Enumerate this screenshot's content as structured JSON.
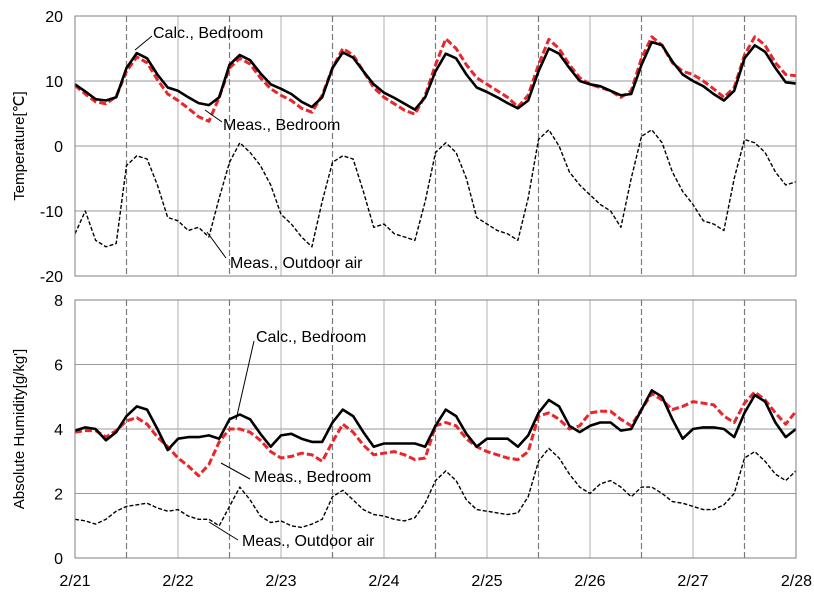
{
  "chart_data": [
    {
      "type": "line",
      "ylabel": "Temperature[℃]",
      "ylim": [
        -20,
        20
      ],
      "yticks": [
        "20",
        "10",
        "0",
        "-10",
        "-20"
      ],
      "xlim": [
        0,
        7
      ],
      "grid": true,
      "x": [
        0,
        0.1,
        0.2,
        0.3,
        0.4,
        0.5,
        0.6,
        0.7,
        0.8,
        0.9,
        1.0,
        1.1,
        1.2,
        1.3,
        1.4,
        1.5,
        1.6,
        1.7,
        1.8,
        1.9,
        2.0,
        2.1,
        2.2,
        2.3,
        2.4,
        2.5,
        2.6,
        2.7,
        2.8,
        2.9,
        3.0,
        3.1,
        3.2,
        3.3,
        3.4,
        3.5,
        3.6,
        3.7,
        3.8,
        3.9,
        4.0,
        4.1,
        4.2,
        4.3,
        4.4,
        4.5,
        4.6,
        4.7,
        4.8,
        4.9,
        5.0,
        5.1,
        5.2,
        5.3,
        5.4,
        5.5,
        5.6,
        5.7,
        5.8,
        5.9,
        6.0,
        6.1,
        6.2,
        6.3,
        6.4,
        6.5,
        6.6,
        6.7,
        6.8,
        6.9,
        7.0
      ],
      "series": [
        {
          "id": "calc-bedroom",
          "color": "#000000",
          "dash": "solid",
          "values": [
            9.5,
            8.4,
            7.2,
            7.0,
            7.5,
            12.0,
            14.3,
            13.5,
            11.0,
            9.0,
            8.5,
            7.5,
            6.6,
            6.3,
            7.5,
            12.5,
            14.0,
            13.2,
            11.2,
            9.5,
            8.8,
            8.0,
            6.8,
            6.0,
            7.5,
            12.0,
            14.4,
            13.6,
            11.5,
            9.5,
            8.2,
            7.4,
            6.5,
            5.6,
            7.5,
            11.5,
            14.2,
            13.5,
            11.0,
            9.0,
            8.3,
            7.5,
            6.6,
            5.8,
            7.0,
            11.5,
            15.0,
            14.2,
            12.0,
            10.0,
            9.5,
            9.2,
            8.5,
            7.8,
            8.0,
            12.5,
            16.0,
            15.5,
            13.0,
            11.0,
            10.0,
            9.2,
            8.0,
            7.0,
            8.5,
            13.5,
            15.5,
            14.5,
            12.0,
            9.8,
            9.6
          ]
        },
        {
          "id": "meas-bedroom",
          "color": "#e8262b",
          "dash": "dashed",
          "values": [
            9.3,
            8.0,
            6.8,
            6.5,
            7.6,
            11.5,
            13.7,
            12.8,
            10.2,
            8.0,
            7.0,
            5.8,
            4.5,
            3.8,
            7.5,
            12.0,
            13.5,
            12.6,
            10.5,
            8.8,
            7.8,
            7.0,
            5.8,
            5.2,
            7.8,
            12.0,
            15.0,
            14.0,
            11.5,
            9.0,
            7.5,
            6.5,
            5.5,
            4.9,
            7.8,
            12.5,
            16.5,
            15.0,
            12.5,
            10.5,
            9.5,
            8.5,
            7.5,
            6.0,
            7.8,
            12.5,
            16.4,
            15.0,
            12.5,
            10.5,
            9.5,
            9.0,
            8.5,
            7.5,
            8.5,
            13.5,
            16.8,
            15.5,
            12.8,
            11.5,
            11.0,
            10.0,
            8.8,
            7.5,
            9.0,
            14.0,
            16.8,
            15.5,
            12.8,
            11.0,
            10.8
          ]
        },
        {
          "id": "meas-outdoor",
          "color": "#000000",
          "dash": "dashed",
          "values": [
            -13.5,
            -10.0,
            -14.5,
            -15.5,
            -15.0,
            -3.0,
            -1.5,
            -2.0,
            -6.0,
            -11.0,
            -11.5,
            -13.0,
            -12.5,
            -14.0,
            -8.0,
            -2.5,
            0.5,
            -1.0,
            -3.0,
            -6.0,
            -10.5,
            -12.0,
            -14.0,
            -15.5,
            -8.5,
            -2.5,
            -1.5,
            -2.0,
            -7.0,
            -12.5,
            -12.0,
            -13.5,
            -14.0,
            -14.5,
            -8.5,
            -1.0,
            0.5,
            -1.0,
            -5.0,
            -11.0,
            -12.0,
            -13.0,
            -13.5,
            -14.5,
            -8.0,
            1.0,
            2.5,
            0.0,
            -4.0,
            -6.0,
            -7.5,
            -9.0,
            -10.0,
            -12.5,
            -5.0,
            1.5,
            2.5,
            0.5,
            -4.0,
            -7.0,
            -9.0,
            -11.5,
            -12.0,
            -13.0,
            -5.0,
            1.0,
            0.5,
            -1.0,
            -4.0,
            -6.0,
            -5.5
          ]
        }
      ]
    },
    {
      "type": "line",
      "ylabel": "Absolute Humidity[g/kg']",
      "ylim": [
        0,
        8
      ],
      "yticks": [
        "8",
        "6",
        "4",
        "2",
        "0"
      ],
      "xlim": [
        0,
        7
      ],
      "grid": true,
      "x": [
        0,
        0.1,
        0.2,
        0.3,
        0.4,
        0.5,
        0.6,
        0.7,
        0.8,
        0.9,
        1.0,
        1.1,
        1.2,
        1.3,
        1.4,
        1.5,
        1.6,
        1.7,
        1.8,
        1.9,
        2.0,
        2.1,
        2.2,
        2.3,
        2.4,
        2.5,
        2.6,
        2.7,
        2.8,
        2.9,
        3.0,
        3.1,
        3.2,
        3.3,
        3.4,
        3.5,
        3.6,
        3.7,
        3.8,
        3.9,
        4.0,
        4.1,
        4.2,
        4.3,
        4.4,
        4.5,
        4.6,
        4.7,
        4.8,
        4.9,
        5.0,
        5.1,
        5.2,
        5.3,
        5.4,
        5.5,
        5.6,
        5.7,
        5.8,
        5.9,
        6.0,
        6.1,
        6.2,
        6.3,
        6.4,
        6.5,
        6.6,
        6.7,
        6.8,
        6.9,
        7.0
      ],
      "series": [
        {
          "id": "calc-bedroom",
          "color": "#000000",
          "dash": "solid",
          "values": [
            3.95,
            4.05,
            4.0,
            3.65,
            3.9,
            4.4,
            4.7,
            4.6,
            4.0,
            3.35,
            3.7,
            3.75,
            3.75,
            3.8,
            3.7,
            4.3,
            4.45,
            4.3,
            3.85,
            3.45,
            3.8,
            3.85,
            3.7,
            3.6,
            3.6,
            4.2,
            4.6,
            4.4,
            3.9,
            3.45,
            3.55,
            3.55,
            3.55,
            3.55,
            3.45,
            4.1,
            4.6,
            4.4,
            3.85,
            3.45,
            3.7,
            3.7,
            3.7,
            3.45,
            3.8,
            4.5,
            4.9,
            4.7,
            4.1,
            3.9,
            4.1,
            4.2,
            4.2,
            3.95,
            4.0,
            4.6,
            5.2,
            5.0,
            4.3,
            3.7,
            4.0,
            4.05,
            4.05,
            4.0,
            3.75,
            4.5,
            5.05,
            4.85,
            4.2,
            3.75,
            4.0
          ]
        },
        {
          "id": "meas-bedroom",
          "color": "#e8262b",
          "dash": "dashed",
          "values": [
            3.9,
            3.95,
            3.95,
            3.75,
            3.95,
            4.25,
            4.35,
            4.15,
            3.75,
            3.45,
            3.1,
            2.85,
            2.55,
            2.9,
            3.6,
            4.0,
            4.0,
            3.9,
            3.65,
            3.3,
            3.1,
            3.15,
            3.25,
            3.2,
            3.0,
            3.6,
            4.15,
            3.9,
            3.5,
            3.2,
            3.25,
            3.3,
            3.2,
            3.05,
            3.1,
            4.1,
            4.2,
            4.1,
            3.7,
            3.45,
            3.3,
            3.2,
            3.1,
            3.05,
            3.3,
            4.4,
            4.5,
            4.3,
            4.0,
            4.1,
            4.5,
            4.55,
            4.55,
            4.3,
            4.1,
            4.6,
            5.1,
            4.9,
            4.6,
            4.7,
            4.85,
            4.8,
            4.75,
            4.4,
            4.2,
            4.8,
            5.15,
            4.9,
            4.5,
            4.15,
            4.55
          ]
        },
        {
          "id": "meas-outdoor",
          "color": "#000000",
          "dash": "dashed",
          "values": [
            1.2,
            1.15,
            1.05,
            1.2,
            1.45,
            1.6,
            1.65,
            1.7,
            1.55,
            1.45,
            1.5,
            1.3,
            1.2,
            1.2,
            1.0,
            1.6,
            2.2,
            1.8,
            1.3,
            1.1,
            1.15,
            1.0,
            0.95,
            1.05,
            1.2,
            1.9,
            2.1,
            1.8,
            1.5,
            1.35,
            1.3,
            1.2,
            1.15,
            1.25,
            1.7,
            2.4,
            2.7,
            2.4,
            1.8,
            1.5,
            1.45,
            1.4,
            1.35,
            1.4,
            1.9,
            3.0,
            3.4,
            3.1,
            2.6,
            2.2,
            2.0,
            2.3,
            2.4,
            2.2,
            1.9,
            2.2,
            2.2,
            2.0,
            1.75,
            1.7,
            1.6,
            1.5,
            1.5,
            1.65,
            2.0,
            3.1,
            3.3,
            3.0,
            2.6,
            2.4,
            2.7
          ]
        }
      ]
    }
  ],
  "x_tick_labels": [
    "2/21",
    "2/22",
    "2/23",
    "2/24",
    "2/25",
    "2/26",
    "2/27",
    "2/28"
  ],
  "vlines_at": [
    0.5,
    1.5,
    2.5,
    3.5,
    4.5,
    5.5,
    6.5
  ],
  "annotations": {
    "top_calc": "Calc., Bedroom",
    "top_meas": "Meas., Bedroom",
    "top_outdoor": "Meas., Outdoor air",
    "bottom_calc": "Calc., Bedroom",
    "bottom_meas": "Meas., Bedroom",
    "bottom_outdoor": "Meas., Outdoor air"
  }
}
